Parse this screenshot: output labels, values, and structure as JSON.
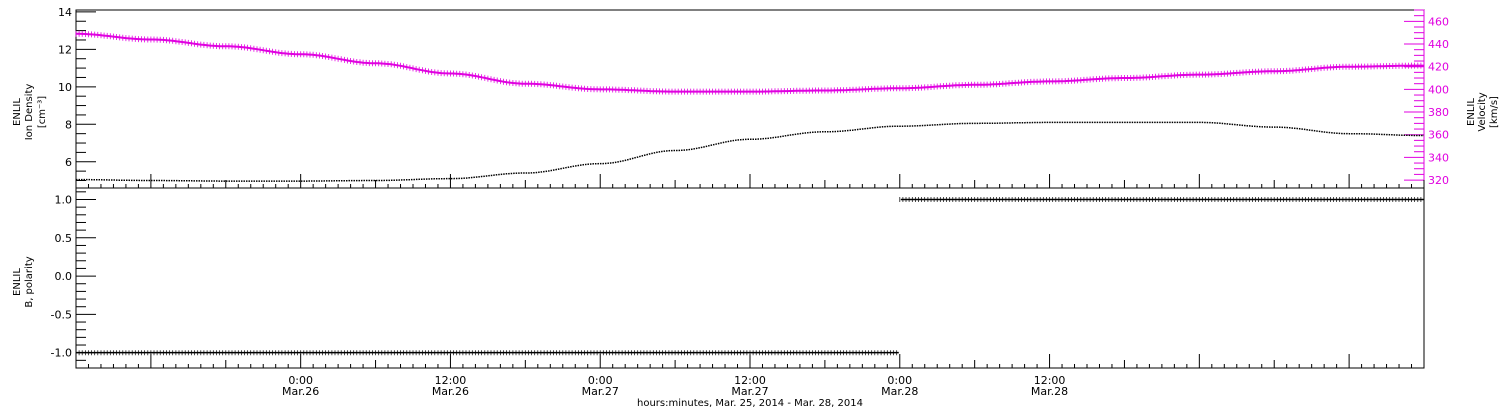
{
  "chart_data": [
    {
      "type": "line",
      "panel": "top",
      "ylabel_left": [
        "ENLIL",
        "Ion Density",
        "[cm⁻³]"
      ],
      "ylabel_right": [
        "ENLIL",
        "Velocity",
        "[km/s]"
      ],
      "ylim_left": [
        4.6,
        14.1
      ],
      "ylim_right": [
        313,
        470
      ],
      "yticks_left": [
        6,
        8,
        10,
        12,
        14
      ],
      "yticks_right": [
        320,
        340,
        360,
        380,
        400,
        420,
        440,
        460
      ],
      "grid": false,
      "series": [
        {
          "axis": "left",
          "color": "#000000",
          "x": [
            -0.75,
            -0.5,
            -0.25,
            0.0,
            0.25,
            0.5,
            0.75,
            1.0,
            1.25,
            1.5,
            1.75,
            2.0,
            2.25,
            2.5,
            2.75,
            3.0,
            3.25,
            3.5,
            3.75
          ],
          "values": [
            5.05,
            5.0,
            4.97,
            4.97,
            5.0,
            5.1,
            5.4,
            5.9,
            6.6,
            7.2,
            7.6,
            7.9,
            8.05,
            8.1,
            8.1,
            8.1,
            7.85,
            7.5,
            7.4
          ]
        },
        {
          "axis": "right",
          "color": "#e000e0",
          "x": [
            -0.75,
            -0.5,
            -0.25,
            0.0,
            0.25,
            0.5,
            0.75,
            1.0,
            1.25,
            1.5,
            1.75,
            2.0,
            2.25,
            2.5,
            2.75,
            3.0,
            3.25,
            3.5,
            3.75
          ],
          "values": [
            449,
            444,
            438,
            431,
            423,
            414,
            405,
            400,
            398,
            398,
            399,
            401,
            404,
            407,
            410,
            413,
            416,
            420,
            421
          ]
        }
      ]
    },
    {
      "type": "scatter",
      "panel": "bottom",
      "ylabel": [
        "ENLIL",
        "B, polarity"
      ],
      "ylim": [
        -1.2,
        1.15
      ],
      "yticks": [
        "1.0",
        "0.5",
        "0.0",
        "-0.5",
        "-1.0"
      ],
      "grid": false,
      "series": [
        {
          "color": "#000000",
          "x": [
            -0.75,
            2.0
          ],
          "values": [
            -1.0,
            -1.0
          ]
        },
        {
          "color": "#000000",
          "x": [
            2.0,
            3.75
          ],
          "values": [
            1.0,
            1.0
          ]
        }
      ]
    }
  ],
  "x_axis": {
    "xlim": [
      -0.75,
      3.75
    ],
    "ticks": [
      {
        "x": 0.0,
        "time": "0:00",
        "date": "Mar.26"
      },
      {
        "x": 0.5,
        "time": "12:00",
        "date": "Mar.26"
      },
      {
        "x": 1.0,
        "time": "0:00",
        "date": "Mar.27"
      },
      {
        "x": 1.5,
        "time": "12:00",
        "date": "Mar.27"
      },
      {
        "x": 2.0,
        "time": "0:00",
        "date": "Mar.28"
      },
      {
        "x": 2.5,
        "time": "12:00",
        "date": "Mar.28"
      }
    ],
    "xlabel": "hours:minutes, Mar. 25, 2014 - Mar. 28, 2014"
  },
  "colors": {
    "density": "#000000",
    "velocity": "#e000e0",
    "frame": "#000000"
  }
}
